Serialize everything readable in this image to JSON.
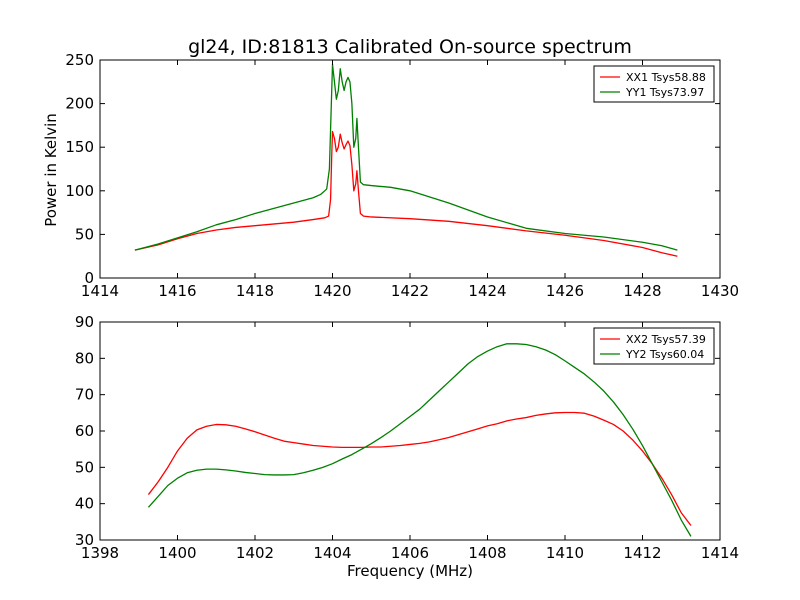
{
  "figure": {
    "title": "gl24, ID:81813 Calibrated On-source spectrum",
    "ylabel": "Power in Kelvin",
    "xlabel": "Frequency (MHz)"
  },
  "chart_data": [
    {
      "type": "line",
      "title": "gl24, ID:81813 Calibrated On-source spectrum",
      "xlabel": "",
      "ylabel": "Power in Kelvin",
      "xlim": [
        1414,
        1430
      ],
      "ylim": [
        0,
        250
      ],
      "xticks": [
        1414,
        1416,
        1418,
        1420,
        1422,
        1424,
        1426,
        1428,
        1430
      ],
      "yticks": [
        0,
        50,
        100,
        150,
        200,
        250
      ],
      "grid": false,
      "legend": "top-right",
      "series": [
        {
          "name": "XX1 Tsys58.88",
          "color": "#ff0000",
          "points": [
            [
              1414.9,
              32
            ],
            [
              1415.5,
              38
            ],
            [
              1416,
              45
            ],
            [
              1416.5,
              51
            ],
            [
              1417,
              55
            ],
            [
              1417.5,
              58
            ],
            [
              1418,
              60
            ],
            [
              1418.5,
              62
            ],
            [
              1419,
              64
            ],
            [
              1419.5,
              67
            ],
            [
              1419.8,
              69
            ],
            [
              1419.9,
              71
            ],
            [
              1419.95,
              90
            ],
            [
              1419.98,
              140
            ],
            [
              1420.0,
              168
            ],
            [
              1420.05,
              160
            ],
            [
              1420.1,
              145
            ],
            [
              1420.15,
              150
            ],
            [
              1420.2,
              165
            ],
            [
              1420.25,
              155
            ],
            [
              1420.3,
              148
            ],
            [
              1420.35,
              153
            ],
            [
              1420.4,
              157
            ],
            [
              1420.45,
              152
            ],
            [
              1420.5,
              130
            ],
            [
              1420.55,
              100
            ],
            [
              1420.6,
              108
            ],
            [
              1420.63,
              123
            ],
            [
              1420.67,
              100
            ],
            [
              1420.72,
              74
            ],
            [
              1420.8,
              71
            ],
            [
              1421,
              70
            ],
            [
              1422,
              68
            ],
            [
              1423,
              65
            ],
            [
              1424,
              60
            ],
            [
              1425,
              54
            ],
            [
              1426,
              49
            ],
            [
              1427,
              43
            ],
            [
              1428,
              35
            ],
            [
              1428.5,
              29
            ],
            [
              1428.9,
              25
            ]
          ]
        },
        {
          "name": "YY1 Tsys73.97",
          "color": "#008000",
          "points": [
            [
              1414.9,
              32
            ],
            [
              1415.5,
              39
            ],
            [
              1416,
              46
            ],
            [
              1416.5,
              53
            ],
            [
              1417,
              61
            ],
            [
              1417.5,
              67
            ],
            [
              1418,
              74
            ],
            [
              1418.5,
              80
            ],
            [
              1419,
              86
            ],
            [
              1419.5,
              92
            ],
            [
              1419.7,
              96
            ],
            [
              1419.85,
              102
            ],
            [
              1419.92,
              125
            ],
            [
              1419.97,
              200
            ],
            [
              1420.0,
              245
            ],
            [
              1420.05,
              225
            ],
            [
              1420.1,
              205
            ],
            [
              1420.15,
              215
            ],
            [
              1420.2,
              240
            ],
            [
              1420.25,
              225
            ],
            [
              1420.3,
              215
            ],
            [
              1420.35,
              225
            ],
            [
              1420.4,
              230
            ],
            [
              1420.45,
              225
            ],
            [
              1420.5,
              200
            ],
            [
              1420.55,
              150
            ],
            [
              1420.6,
              160
            ],
            [
              1420.63,
              183
            ],
            [
              1420.67,
              150
            ],
            [
              1420.72,
              110
            ],
            [
              1420.8,
              107
            ],
            [
              1421,
              106
            ],
            [
              1421.5,
              104
            ],
            [
              1422,
              100
            ],
            [
              1423,
              86
            ],
            [
              1424,
              70
            ],
            [
              1425,
              57
            ],
            [
              1426,
              51
            ],
            [
              1427,
              47
            ],
            [
              1428,
              41
            ],
            [
              1428.5,
              37
            ],
            [
              1428.9,
              32
            ]
          ]
        }
      ]
    },
    {
      "type": "line",
      "title": "",
      "xlabel": "Frequency (MHz)",
      "ylabel": "",
      "xlim": [
        1398,
        1414
      ],
      "ylim": [
        30,
        90
      ],
      "xticks": [
        1398,
        1400,
        1402,
        1404,
        1406,
        1408,
        1410,
        1412,
        1414
      ],
      "yticks": [
        30,
        40,
        50,
        60,
        70,
        80,
        90
      ],
      "grid": false,
      "legend": "top-right",
      "series": [
        {
          "name": "XX2 Tsys57.39",
          "color": "#ff0000",
          "points": [
            [
              1399.25,
              42.5
            ],
            [
              1399.5,
              46
            ],
            [
              1399.75,
              50
            ],
            [
              1400,
              54.5
            ],
            [
              1400.25,
              58
            ],
            [
              1400.5,
              60.3
            ],
            [
              1400.75,
              61.3
            ],
            [
              1401,
              61.8
            ],
            [
              1401.25,
              61.7
            ],
            [
              1401.5,
              61.3
            ],
            [
              1401.75,
              60.6
            ],
            [
              1402,
              59.8
            ],
            [
              1402.25,
              58.9
            ],
            [
              1402.5,
              58
            ],
            [
              1402.75,
              57.2
            ],
            [
              1403,
              56.8
            ],
            [
              1403.25,
              56.4
            ],
            [
              1403.5,
              56
            ],
            [
              1403.75,
              55.8
            ],
            [
              1404,
              55.6
            ],
            [
              1404.25,
              55.5
            ],
            [
              1404.5,
              55.5
            ],
            [
              1404.75,
              55.5
            ],
            [
              1405,
              55.6
            ],
            [
              1405.25,
              55.6
            ],
            [
              1405.5,
              55.8
            ],
            [
              1405.75,
              56
            ],
            [
              1406,
              56.3
            ],
            [
              1406.25,
              56.6
            ],
            [
              1406.5,
              57
            ],
            [
              1406.75,
              57.6
            ],
            [
              1407,
              58.2
            ],
            [
              1407.25,
              59
            ],
            [
              1407.5,
              59.8
            ],
            [
              1407.75,
              60.6
            ],
            [
              1408,
              61.4
            ],
            [
              1408.25,
              62
            ],
            [
              1408.5,
              62.8
            ],
            [
              1408.75,
              63.3
            ],
            [
              1409,
              63.7
            ],
            [
              1409.25,
              64.3
            ],
            [
              1409.5,
              64.7
            ],
            [
              1409.75,
              65
            ],
            [
              1410,
              65.1
            ],
            [
              1410.25,
              65.1
            ],
            [
              1410.5,
              64.9
            ],
            [
              1410.75,
              64.1
            ],
            [
              1411,
              63
            ],
            [
              1411.25,
              61.8
            ],
            [
              1411.5,
              60
            ],
            [
              1411.75,
              57.5
            ],
            [
              1412,
              54.5
            ],
            [
              1412.25,
              51
            ],
            [
              1412.5,
              47
            ],
            [
              1412.75,
              42.5
            ],
            [
              1413,
              37.5
            ],
            [
              1413.25,
              34
            ]
          ]
        },
        {
          "name": "YY2 Tsys60.04",
          "color": "#008000",
          "points": [
            [
              1399.25,
              39
            ],
            [
              1399.5,
              42
            ],
            [
              1399.75,
              45
            ],
            [
              1400,
              47
            ],
            [
              1400.25,
              48.5
            ],
            [
              1400.5,
              49.2
            ],
            [
              1400.75,
              49.5
            ],
            [
              1401,
              49.5
            ],
            [
              1401.25,
              49.3
            ],
            [
              1401.5,
              49
            ],
            [
              1401.75,
              48.6
            ],
            [
              1402,
              48.3
            ],
            [
              1402.25,
              48
            ],
            [
              1402.5,
              47.9
            ],
            [
              1402.75,
              47.9
            ],
            [
              1403,
              48
            ],
            [
              1403.25,
              48.5
            ],
            [
              1403.5,
              49.2
            ],
            [
              1403.75,
              50
            ],
            [
              1404,
              51
            ],
            [
              1404.25,
              52.3
            ],
            [
              1404.5,
              53.5
            ],
            [
              1404.75,
              55
            ],
            [
              1405,
              56.5
            ],
            [
              1405.25,
              58.2
            ],
            [
              1405.5,
              60
            ],
            [
              1405.75,
              62
            ],
            [
              1406,
              64
            ],
            [
              1406.25,
              66
            ],
            [
              1406.5,
              68.5
            ],
            [
              1406.75,
              71
            ],
            [
              1407,
              73.5
            ],
            [
              1407.25,
              76
            ],
            [
              1407.5,
              78.5
            ],
            [
              1407.75,
              80.5
            ],
            [
              1408,
              82
            ],
            [
              1408.25,
              83.2
            ],
            [
              1408.5,
              84
            ],
            [
              1408.75,
              84
            ],
            [
              1409,
              83.8
            ],
            [
              1409.25,
              83.2
            ],
            [
              1409.5,
              82.3
            ],
            [
              1409.75,
              81
            ],
            [
              1410,
              79.3
            ],
            [
              1410.25,
              77.5
            ],
            [
              1410.5,
              75.7
            ],
            [
              1410.75,
              73.5
            ],
            [
              1411,
              71
            ],
            [
              1411.25,
              68
            ],
            [
              1411.5,
              64.5
            ],
            [
              1411.75,
              60.5
            ],
            [
              1412,
              56
            ],
            [
              1412.25,
              51
            ],
            [
              1412.5,
              46
            ],
            [
              1412.75,
              41
            ],
            [
              1413,
              35.5
            ],
            [
              1413.25,
              31
            ]
          ]
        }
      ]
    }
  ]
}
